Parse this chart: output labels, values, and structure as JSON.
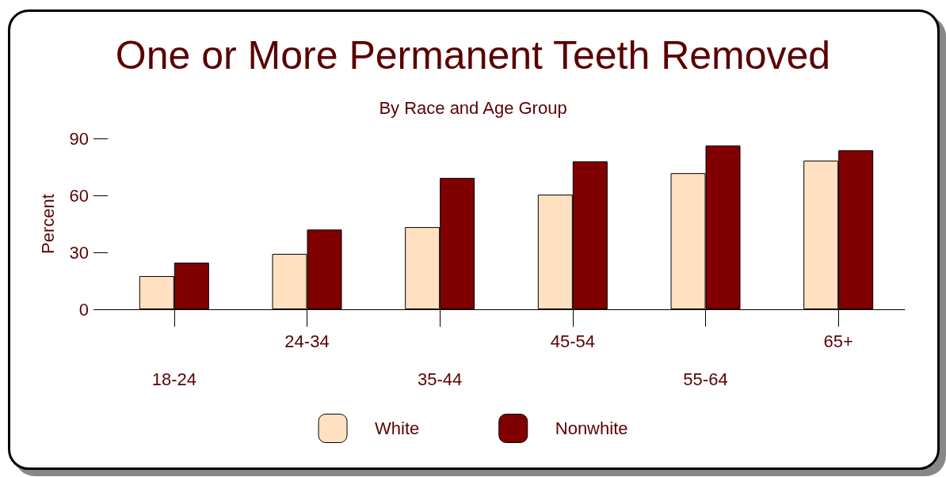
{
  "chart_data": {
    "type": "bar",
    "title": "One or More Permanent Teeth Removed",
    "subtitle": "By Race and Age Group",
    "ylabel": "Percent",
    "categories": [
      "18-24",
      "24-34",
      "35-44",
      "45-54",
      "55-64",
      "65+"
    ],
    "series": [
      {
        "name": "White",
        "color": "#ffe0c0",
        "values": [
          17.5,
          29.2,
          43.3,
          60.4,
          71.7,
          78.3
        ]
      },
      {
        "name": "Nonwhite",
        "color": "#800000",
        "values": [
          24.6,
          42,
          69.2,
          77.9,
          86.3,
          83.8
        ]
      }
    ],
    "ylim": [
      0,
      90
    ],
    "yticks": [
      0,
      30,
      60,
      90
    ],
    "grid": false,
    "legend": "bottom"
  }
}
